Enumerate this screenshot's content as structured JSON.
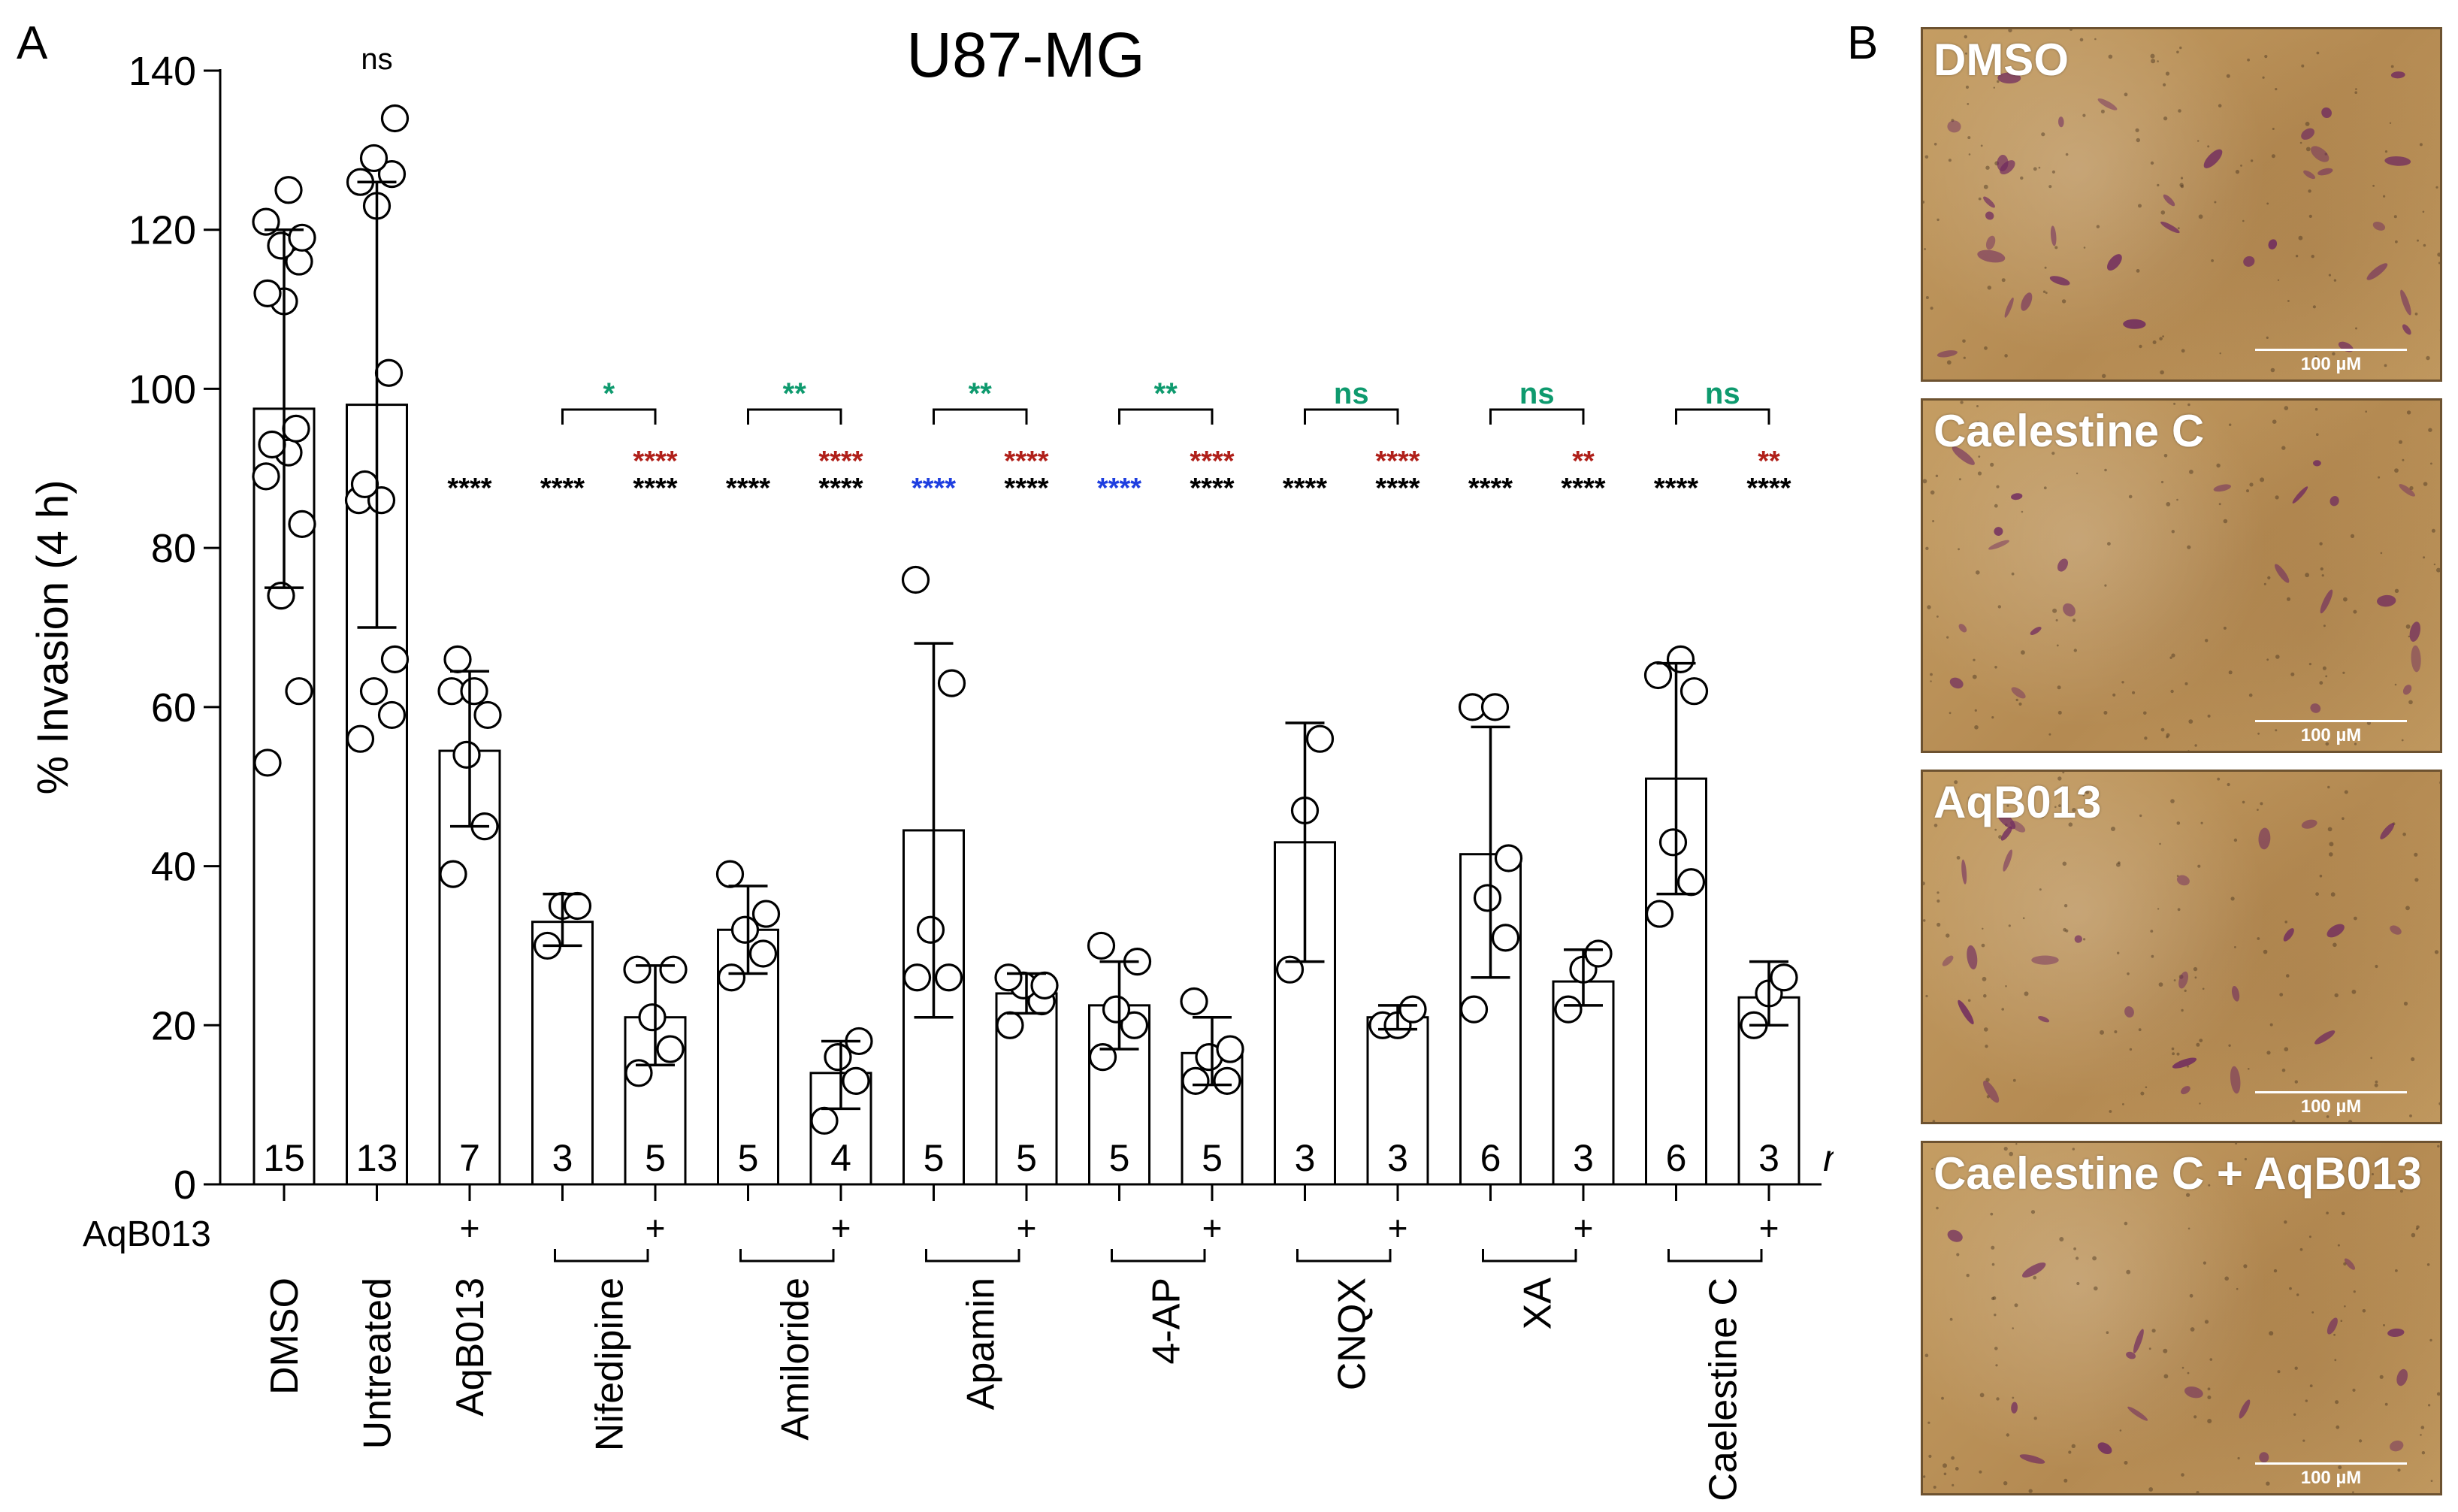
{
  "panel_a_letter": "A",
  "panel_b_letter": "B",
  "chart_data": {
    "type": "bar",
    "title": "U87-MG",
    "ylabel": "% Invasion (4 h)",
    "xlabel": "",
    "ylim": [
      0,
      140
    ],
    "yticks": [
      0,
      20,
      40,
      60,
      80,
      100,
      120,
      140
    ],
    "n_label": "n",
    "aqb_row_label": "AqB013",
    "plus_symbol": "+",
    "bars": [
      {
        "mean": 97.5,
        "sd_low": 75,
        "sd_high": 120,
        "n": "15",
        "aqb": false,
        "points": [
          53,
          62,
          74,
          83,
          89,
          92,
          93,
          95,
          111,
          112,
          116,
          118,
          119,
          121,
          125
        ]
      },
      {
        "mean": 98,
        "sd_low": 70,
        "sd_high": 126,
        "n": "13",
        "aqb": false,
        "points": [
          56,
          59,
          62,
          66,
          86,
          86,
          88,
          102,
          123,
          126,
          127,
          129,
          134
        ]
      },
      {
        "mean": 54.5,
        "sd_low": 45,
        "sd_high": 64.5,
        "n": "7",
        "aqb": true,
        "points": [
          39,
          45,
          54,
          59,
          62,
          62,
          66
        ]
      },
      {
        "mean": 33,
        "sd_low": 30,
        "sd_high": 36.5,
        "n": "3",
        "aqb": false,
        "points": [
          30,
          35,
          35
        ]
      },
      {
        "mean": 21,
        "sd_low": 15,
        "sd_high": 27.5,
        "n": "5",
        "aqb": true,
        "points": [
          14,
          17,
          21,
          27,
          27
        ]
      },
      {
        "mean": 32,
        "sd_low": 26.5,
        "sd_high": 37.5,
        "n": "5",
        "aqb": false,
        "points": [
          26,
          29,
          32,
          34,
          39
        ]
      },
      {
        "mean": 14,
        "sd_low": 9.5,
        "sd_high": 18,
        "n": "4",
        "aqb": true,
        "points": [
          8,
          13,
          16,
          18
        ]
      },
      {
        "mean": 44.5,
        "sd_low": 21,
        "sd_high": 68,
        "n": "5",
        "aqb": false,
        "points": [
          26,
          26,
          32,
          63,
          76
        ]
      },
      {
        "mean": 24,
        "sd_low": 21.5,
        "sd_high": 26.5,
        "n": "5",
        "aqb": true,
        "points": [
          20,
          23,
          25,
          25,
          26
        ]
      },
      {
        "mean": 22.5,
        "sd_low": 17,
        "sd_high": 28,
        "n": "5",
        "aqb": false,
        "points": [
          16,
          20,
          22,
          28,
          30
        ]
      },
      {
        "mean": 16.5,
        "sd_low": 12.5,
        "sd_high": 21,
        "n": "5",
        "aqb": true,
        "points": [
          13,
          13,
          16,
          17,
          23
        ]
      },
      {
        "mean": 43,
        "sd_low": 28,
        "sd_high": 58,
        "n": "3",
        "aqb": false,
        "points": [
          27,
          47,
          56
        ]
      },
      {
        "mean": 21,
        "sd_low": 19.5,
        "sd_high": 22.5,
        "n": "3",
        "aqb": true,
        "points": [
          20,
          20,
          22
        ]
      },
      {
        "mean": 41.5,
        "sd_low": 26,
        "sd_high": 57.5,
        "n": "6",
        "aqb": false,
        "points": [
          22,
          31,
          36,
          41,
          60,
          60
        ]
      },
      {
        "mean": 25.5,
        "sd_low": 22.5,
        "sd_high": 29.5,
        "n": "3",
        "aqb": true,
        "points": [
          22,
          27,
          29
        ]
      },
      {
        "mean": 51,
        "sd_low": 36.5,
        "sd_high": 65.5,
        "n": "6",
        "aqb": false,
        "points": [
          34,
          38,
          43,
          62,
          64,
          66
        ]
      },
      {
        "mean": 23.5,
        "sd_low": 20,
        "sd_high": 28,
        "n": "3",
        "aqb": true,
        "points": [
          20,
          24,
          26
        ]
      }
    ],
    "categories": [
      {
        "label": "DMSO",
        "bars": [
          0
        ],
        "grouped": false
      },
      {
        "label": "Untreated",
        "bars": [
          1
        ],
        "grouped": false
      },
      {
        "label": "AqB013",
        "bars": [
          2
        ],
        "grouped": false
      },
      {
        "label": "Nifedipine",
        "bars": [
          3,
          4
        ],
        "grouped": true
      },
      {
        "label": "Amiloride",
        "bars": [
          5,
          6
        ],
        "grouped": true
      },
      {
        "label": "Apamin",
        "bars": [
          7,
          8
        ],
        "grouped": true
      },
      {
        "label": "4-AP",
        "bars": [
          9,
          10
        ],
        "grouped": true
      },
      {
        "label": "CNQX",
        "bars": [
          11,
          12
        ],
        "grouped": true
      },
      {
        "label": "XA",
        "bars": [
          13,
          14
        ],
        "grouped": true
      },
      {
        "label": "Caelestine C",
        "bars": [
          15,
          16
        ],
        "grouped": true
      }
    ],
    "annotations": {
      "top_ns": {
        "bar": 1,
        "text": "ns",
        "color": "#000000"
      },
      "vs_dmso": [
        {
          "bar": 2,
          "text": "****",
          "color": "#000000"
        },
        {
          "bar": 3,
          "text": "****",
          "color": "#000000"
        },
        {
          "bar": 4,
          "text": "****",
          "color": "#000000"
        },
        {
          "bar": 5,
          "text": "****",
          "color": "#000000"
        },
        {
          "bar": 6,
          "text": "****",
          "color": "#000000"
        },
        {
          "bar": 7,
          "text": "****",
          "color": "#1f3fe0"
        },
        {
          "bar": 8,
          "text": "****",
          "color": "#000000"
        },
        {
          "bar": 9,
          "text": "****",
          "color": "#1f3fe0"
        },
        {
          "bar": 10,
          "text": "****",
          "color": "#000000"
        },
        {
          "bar": 11,
          "text": "****",
          "color": "#000000"
        },
        {
          "bar": 12,
          "text": "****",
          "color": "#000000"
        },
        {
          "bar": 13,
          "text": "****",
          "color": "#000000"
        },
        {
          "bar": 14,
          "text": "****",
          "color": "#000000"
        },
        {
          "bar": 15,
          "text": "****",
          "color": "#000000"
        },
        {
          "bar": 16,
          "text": "****",
          "color": "#000000"
        }
      ],
      "vs_drug": [
        {
          "bar": 4,
          "text": "****",
          "color": "#b0201a"
        },
        {
          "bar": 6,
          "text": "****",
          "color": "#b0201a"
        },
        {
          "bar": 8,
          "text": "****",
          "color": "#b0201a"
        },
        {
          "bar": 10,
          "text": "****",
          "color": "#b0201a"
        },
        {
          "bar": 12,
          "text": "****",
          "color": "#b0201a"
        },
        {
          "bar": 14,
          "text": "**",
          "color": "#b0201a"
        },
        {
          "bar": 16,
          "text": "**",
          "color": "#b0201a"
        }
      ],
      "pair_brackets": [
        {
          "bars": [
            3,
            4
          ],
          "text": "*",
          "color": "#0e9a6e"
        },
        {
          "bars": [
            5,
            6
          ],
          "text": "**",
          "color": "#0e9a6e"
        },
        {
          "bars": [
            7,
            8
          ],
          "text": "**",
          "color": "#0e9a6e"
        },
        {
          "bars": [
            9,
            10
          ],
          "text": "**",
          "color": "#0e9a6e"
        },
        {
          "bars": [
            11,
            12
          ],
          "text": "ns",
          "color": "#0e9a6e"
        },
        {
          "bars": [
            13,
            14
          ],
          "text": "ns",
          "color": "#0e9a6e"
        },
        {
          "bars": [
            15,
            16
          ],
          "text": "ns",
          "color": "#0e9a6e"
        }
      ]
    }
  },
  "micrographs": [
    {
      "label": "DMSO",
      "scale": "100 µM",
      "cells": 34
    },
    {
      "label": "Caelestine C",
      "scale": "100 µM",
      "cells": 22
    },
    {
      "label": "AqB013",
      "scale": "100 µM",
      "cells": 26
    },
    {
      "label": "Caelestine C + AqB013",
      "scale": "100 µM",
      "cells": 16
    }
  ]
}
